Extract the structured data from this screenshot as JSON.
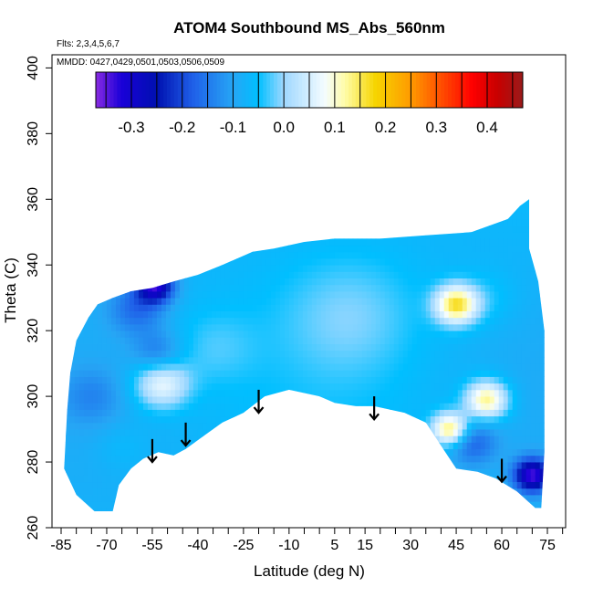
{
  "chart_data": {
    "type": "heatmap",
    "title": "ATOM4 Southbound MS_Abs_560nm",
    "subtitle_lines": [
      "Flts: 2,3,4,5,6,7",
      "MMDD: 0427,0429,0501,0503,0506,0509"
    ],
    "xlabel": "Latitude (deg N)",
    "ylabel": "Theta (C)",
    "xlim": [
      -88,
      81
    ],
    "ylim": [
      260,
      404
    ],
    "x_ticks": [
      -85,
      -70,
      -55,
      -40,
      -25,
      -10,
      5,
      15,
      30,
      45,
      60,
      75
    ],
    "x_minor_ticks": [
      -80,
      -75,
      -65,
      -60,
      -50,
      -45,
      -35,
      -30,
      -20,
      -15,
      -5,
      0,
      10,
      20,
      25,
      35,
      40,
      50,
      55,
      65,
      70,
      80
    ],
    "y_ticks": [
      260,
      280,
      300,
      320,
      340,
      360,
      380,
      400
    ],
    "colorbar": {
      "range": [
        -0.37,
        0.47
      ],
      "ticks": [
        -0.3,
        -0.2,
        -0.1,
        0.0,
        0.1,
        0.2,
        0.3,
        0.4
      ],
      "tick_labels": [
        "-0.3",
        "-0.2",
        "-0.1",
        "0.0",
        "0.1",
        "0.2",
        "0.3",
        "0.4"
      ],
      "stops": [
        {
          "v": -0.37,
          "c": "#8a2be2"
        },
        {
          "v": -0.32,
          "c": "#1a00d8"
        },
        {
          "v": -0.25,
          "c": "#0010b0"
        },
        {
          "v": -0.18,
          "c": "#1f5fe8"
        },
        {
          "v": -0.1,
          "c": "#26a6f5"
        },
        {
          "v": -0.05,
          "c": "#00bfff"
        },
        {
          "v": 0.0,
          "c": "#9fd8ff"
        },
        {
          "v": 0.08,
          "c": "#f4fcff"
        },
        {
          "v": 0.12,
          "c": "#fffca8"
        },
        {
          "v": 0.18,
          "c": "#f6d500"
        },
        {
          "v": 0.25,
          "c": "#ff9a00"
        },
        {
          "v": 0.32,
          "c": "#ff4000"
        },
        {
          "v": 0.37,
          "c": "#ff0000"
        },
        {
          "v": 0.42,
          "c": "#c80000"
        },
        {
          "v": 0.47,
          "c": "#9a1a1a"
        }
      ]
    },
    "field": {
      "base_value": -0.07,
      "outline": [
        [
          -84,
          278
        ],
        [
          -83,
          296
        ],
        [
          -82,
          307
        ],
        [
          -80,
          317
        ],
        [
          -76,
          324
        ],
        [
          -73,
          328
        ],
        [
          -68,
          330
        ],
        [
          -62,
          332
        ],
        [
          -55,
          333
        ],
        [
          -48,
          335
        ],
        [
          -40,
          337
        ],
        [
          -32,
          340
        ],
        [
          -22,
          344
        ],
        [
          -15,
          345
        ],
        [
          -5,
          347
        ],
        [
          5,
          348
        ],
        [
          20,
          348
        ],
        [
          35,
          349
        ],
        [
          50,
          350
        ],
        [
          62,
          354
        ],
        [
          66,
          358
        ],
        [
          69,
          360
        ],
        [
          69,
          345
        ],
        [
          72,
          335
        ],
        [
          74,
          320
        ],
        [
          74,
          300
        ],
        [
          74,
          283
        ],
        [
          73,
          266
        ],
        [
          71,
          266
        ],
        [
          65,
          271
        ],
        [
          58,
          275
        ],
        [
          52,
          277
        ],
        [
          45,
          278
        ],
        [
          40,
          285
        ],
        [
          35,
          292
        ],
        [
          28,
          295
        ],
        [
          18,
          297
        ],
        [
          12,
          297
        ],
        [
          5,
          298
        ],
        [
          0,
          300
        ],
        [
          -5,
          301
        ],
        [
          -10,
          302
        ],
        [
          -18,
          300
        ],
        [
          -25,
          295
        ],
        [
          -32,
          292
        ],
        [
          -38,
          288
        ],
        [
          -44,
          284
        ],
        [
          -48,
          282
        ],
        [
          -53,
          283
        ],
        [
          -58,
          281
        ],
        [
          -62,
          278
        ],
        [
          -66,
          273
        ],
        [
          -68,
          265
        ],
        [
          -74,
          265
        ],
        [
          -80,
          270
        ],
        [
          -84,
          278
        ]
      ],
      "features": [
        {
          "x": -54,
          "y": 334,
          "v": -0.31,
          "r": 6
        },
        {
          "x": -60,
          "y": 327,
          "v": -0.16,
          "r": 9
        },
        {
          "x": -53,
          "y": 313,
          "v": -0.15,
          "r": 8
        },
        {
          "x": -52,
          "y": 304,
          "v": 0.08,
          "r": 9
        },
        {
          "x": -75,
          "y": 300,
          "v": -0.12,
          "r": 10
        },
        {
          "x": -65,
          "y": 285,
          "v": -0.05,
          "r": 9
        },
        {
          "x": 45,
          "y": 328,
          "v": 0.16,
          "r": 7
        },
        {
          "x": 55,
          "y": 299,
          "v": 0.14,
          "r": 7
        },
        {
          "x": 43,
          "y": 290,
          "v": 0.16,
          "r": 6
        },
        {
          "x": 50,
          "y": 286,
          "v": -0.17,
          "r": 8
        },
        {
          "x": 70,
          "y": 276,
          "v": -0.33,
          "r": 6
        },
        {
          "x": 10,
          "y": 325,
          "v": -0.02,
          "r": 22
        },
        {
          "x": -35,
          "y": 315,
          "v": -0.03,
          "r": 14
        },
        {
          "x": 55,
          "y": 330,
          "v": -0.04,
          "r": 10
        }
      ]
    },
    "arrows": [
      {
        "x": -55,
        "y_top": 287,
        "y_bottom": 280
      },
      {
        "x": -44,
        "y_top": 292,
        "y_bottom": 285
      },
      {
        "x": -20,
        "y_top": 302,
        "y_bottom": 295
      },
      {
        "x": 18,
        "y_top": 300,
        "y_bottom": 293
      },
      {
        "x": 60,
        "y_top": 281,
        "y_bottom": 274
      }
    ]
  }
}
